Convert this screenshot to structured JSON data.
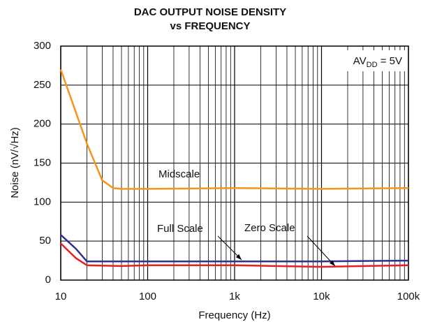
{
  "chart_data": {
    "type": "line",
    "title": [
      "DAC OUTPUT NOISE DENSITY",
      "vs FREQUENCY"
    ],
    "xlabel": "Frequency (Hz)",
    "ylabel": "Noise (nV/√Hz)",
    "annotation": {
      "main": "AV",
      "sub": "DD",
      "rest": " = 5V"
    },
    "xscale": "log",
    "xlim": [
      10,
      100000
    ],
    "ylim": [
      0,
      300
    ],
    "xticks": [
      10,
      100,
      {
        "value": 1000,
        "label": "1k"
      },
      {
        "value": 10000,
        "label": "10k"
      },
      {
        "value": 100000,
        "label": "100k"
      }
    ],
    "yticks": [
      0,
      50,
      100,
      150,
      200,
      250,
      300
    ],
    "grid": true,
    "series": [
      {
        "name": "Midscale",
        "color": "#f7941d",
        "x": [
          10,
          20,
          30,
          40,
          50,
          100,
          1000,
          10000,
          100000
        ],
        "values": [
          270,
          175,
          128,
          118,
          117,
          117,
          118,
          117,
          118
        ]
      },
      {
        "name": "Full Scale",
        "color": "#2e3192",
        "x": [
          10,
          15,
          20,
          100,
          1000,
          10000,
          100000
        ],
        "values": [
          58,
          40,
          24,
          24,
          24,
          24,
          25
        ]
      },
      {
        "name": "Zero Scale",
        "color": "#ed1c24",
        "x": [
          10,
          15,
          20,
          50,
          100,
          1000,
          10000,
          100000
        ],
        "values": [
          47,
          28,
          19,
          18,
          19,
          19,
          17,
          19
        ]
      }
    ]
  }
}
